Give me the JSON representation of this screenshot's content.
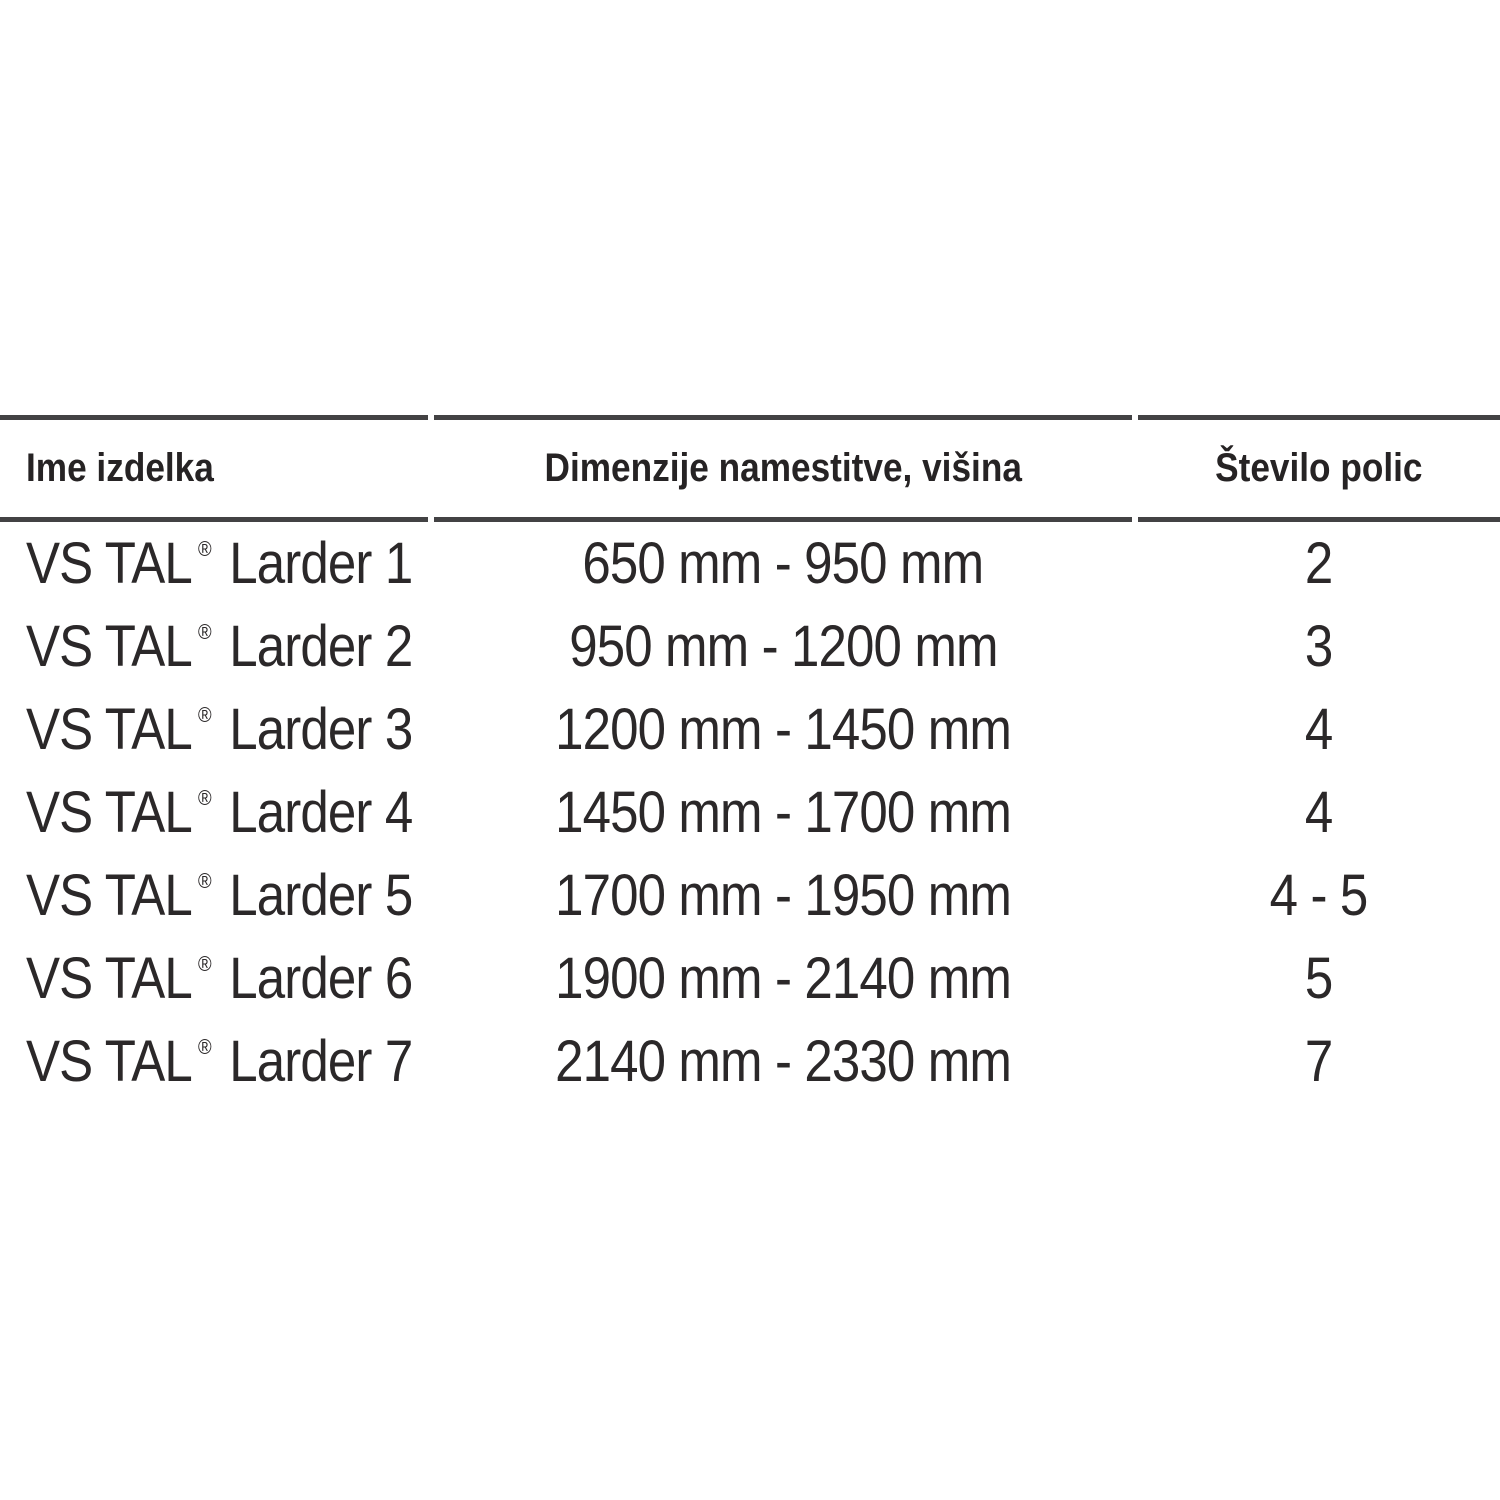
{
  "colors": {
    "background": "#ffffff",
    "text": "#2b2829",
    "header_text": "#262324",
    "rule": "#434244"
  },
  "table": {
    "columns": [
      {
        "id": "product",
        "label": "Ime izdelka"
      },
      {
        "id": "dimensions",
        "label": "Dimenzije namestitve, višina"
      },
      {
        "id": "shelves",
        "label": "Število polic"
      }
    ],
    "rows": [
      {
        "brand": "VS TAL",
        "reg": "®",
        "model": "Larder 1",
        "dimensions": "650 mm - 950 mm",
        "shelves": "2"
      },
      {
        "brand": "VS TAL",
        "reg": "®",
        "model": "Larder 2",
        "dimensions": "950 mm - 1200 mm",
        "shelves": "3"
      },
      {
        "brand": "VS TAL",
        "reg": "®",
        "model": "Larder 3",
        "dimensions": "1200 mm - 1450 mm",
        "shelves": "4"
      },
      {
        "brand": "VS TAL",
        "reg": "®",
        "model": "Larder 4",
        "dimensions": "1450 mm - 1700 mm",
        "shelves": "4"
      },
      {
        "brand": "VS TAL",
        "reg": "®",
        "model": "Larder 5",
        "dimensions": "1700 mm - 1950 mm",
        "shelves": "4 - 5"
      },
      {
        "brand": "VS TAL",
        "reg": "®",
        "model": "Larder 6",
        "dimensions": "1900 mm - 2140 mm",
        "shelves": "5"
      },
      {
        "brand": "VS TAL",
        "reg": "®",
        "model": "Larder 7",
        "dimensions": "2140 mm - 2330 mm",
        "shelves": "7"
      }
    ]
  }
}
